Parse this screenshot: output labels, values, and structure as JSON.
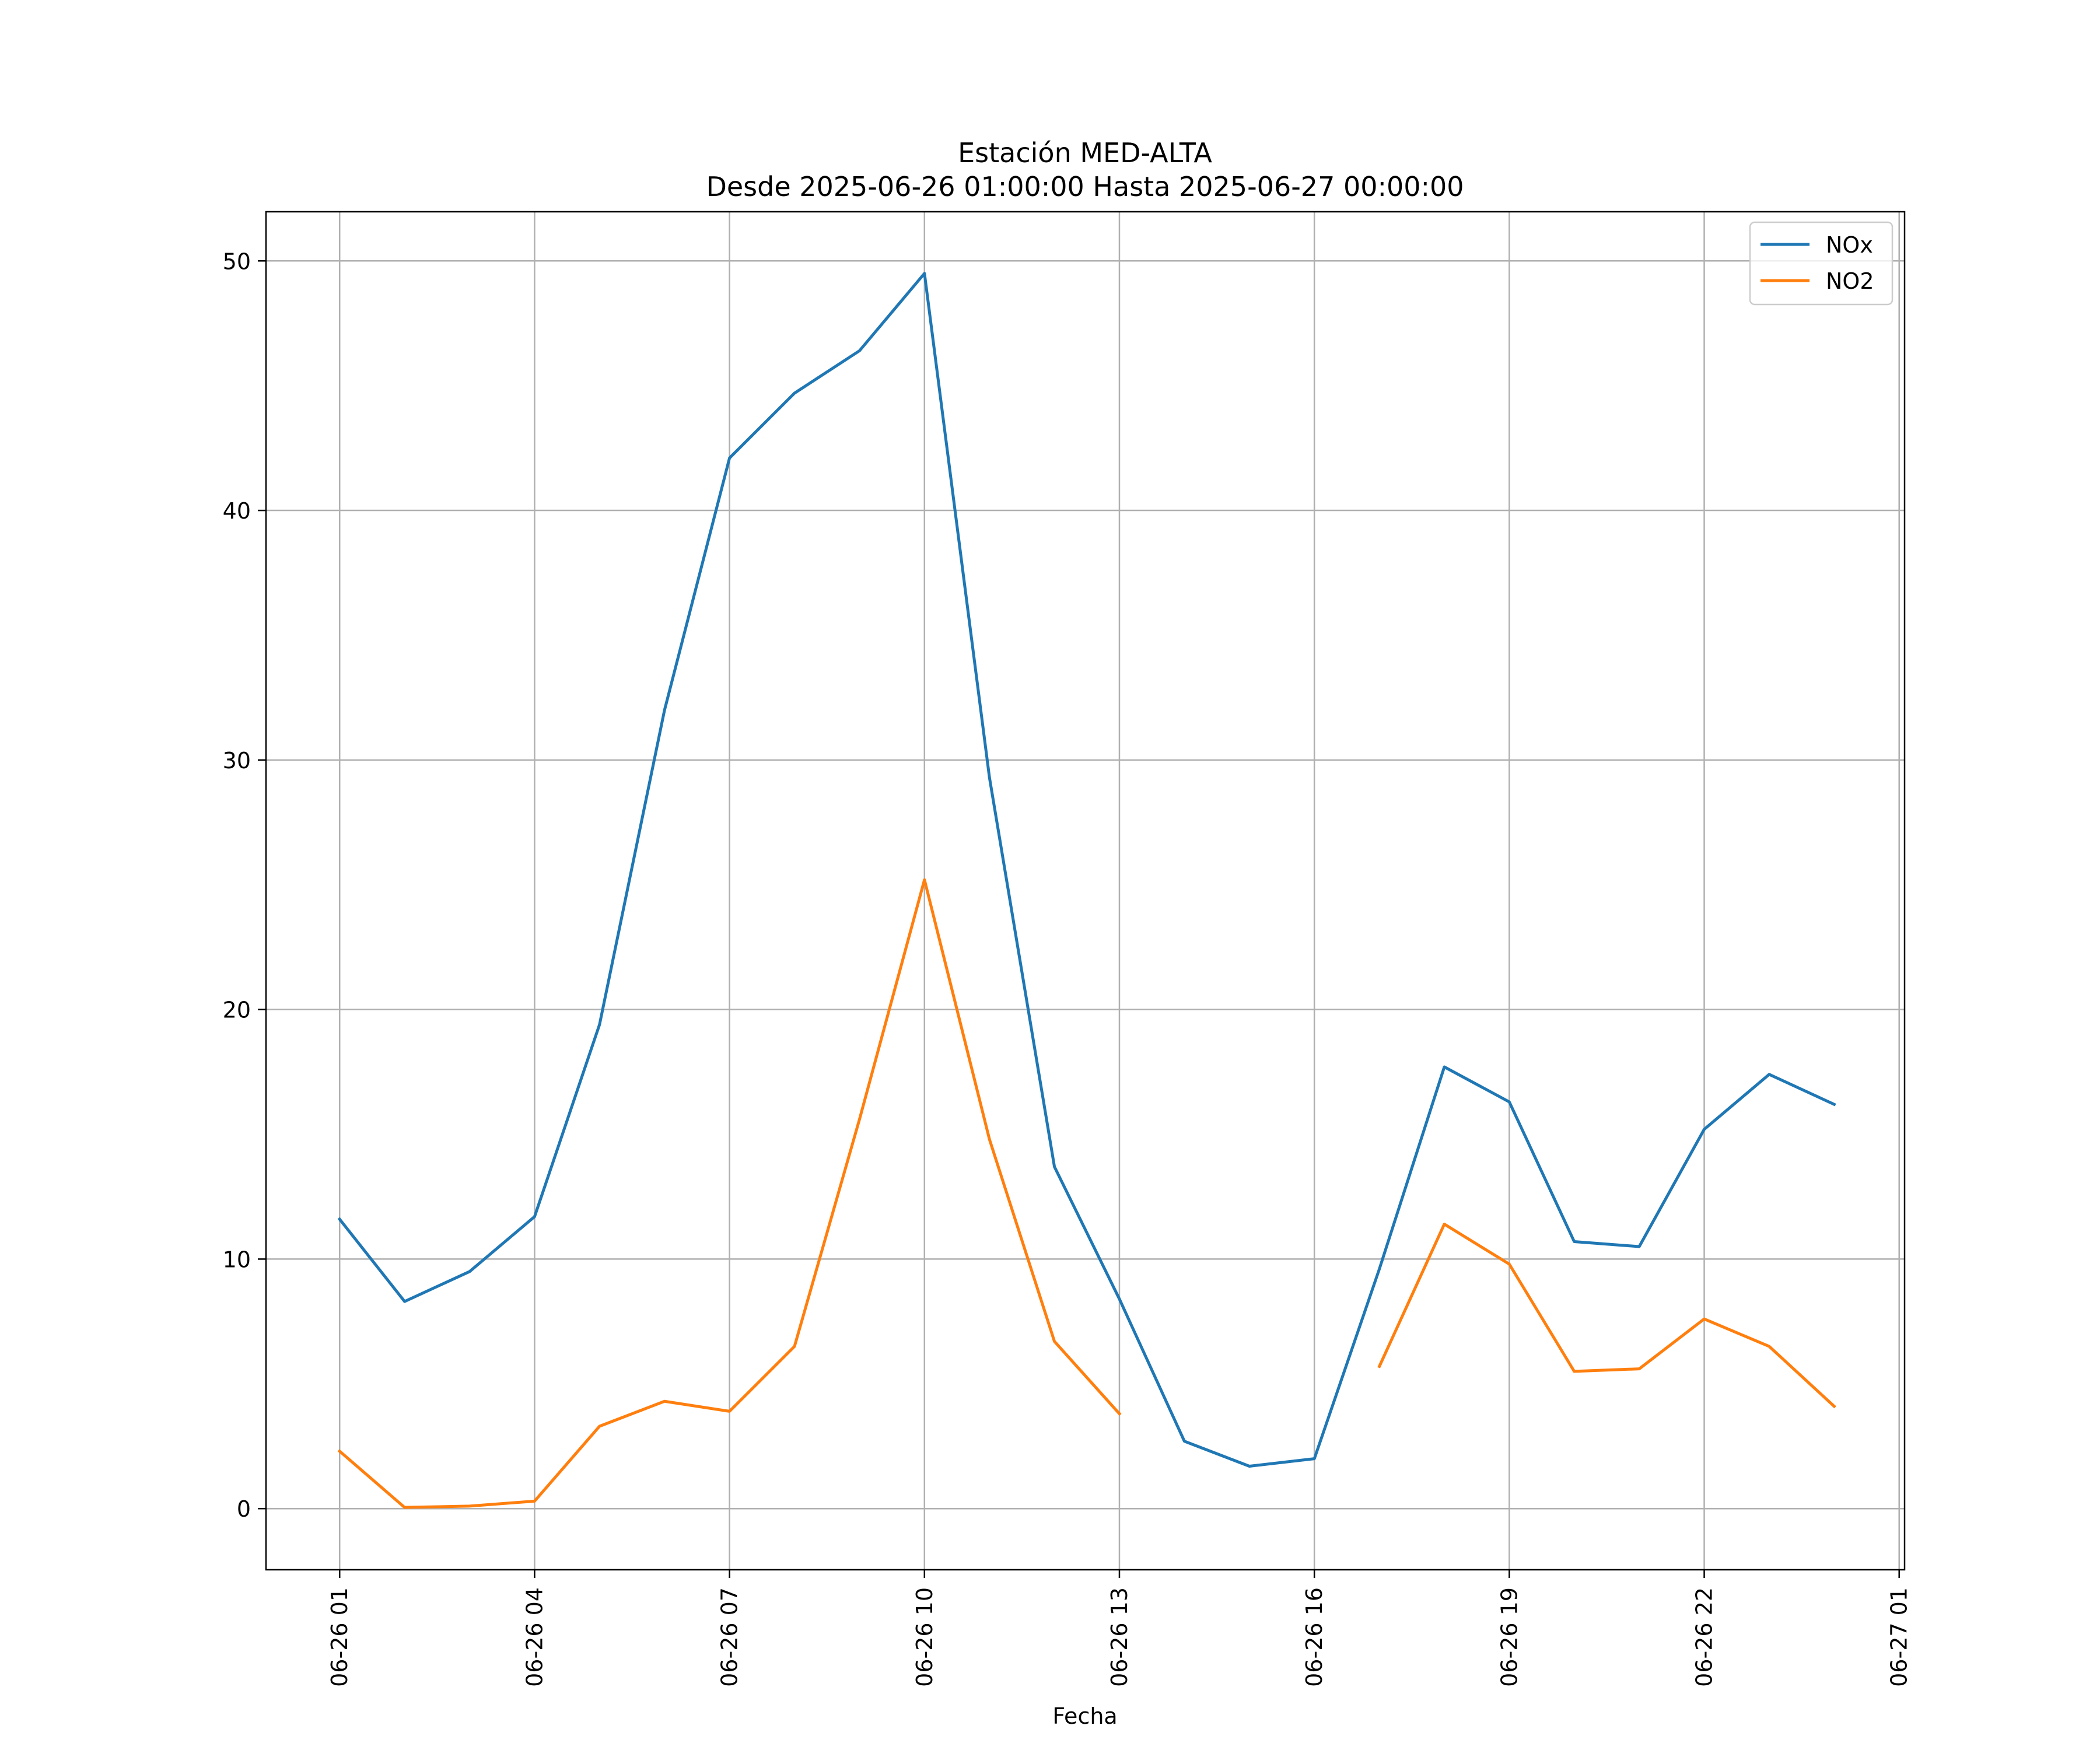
{
  "chart_data": {
    "type": "line",
    "title": "Estación MED-ALTA",
    "subtitle": "Desde 2025-06-26 01:00:00 Hasta 2025-06-27 00:00:00",
    "xlabel": "Fecha",
    "ylabel": "",
    "x": [
      "2025-06-26 01:00",
      "2025-06-26 02:00",
      "2025-06-26 03:00",
      "2025-06-26 04:00",
      "2025-06-26 05:00",
      "2025-06-26 06:00",
      "2025-06-26 07:00",
      "2025-06-26 08:00",
      "2025-06-26 09:00",
      "2025-06-26 10:00",
      "2025-06-26 11:00",
      "2025-06-26 12:00",
      "2025-06-26 13:00",
      "2025-06-26 14:00",
      "2025-06-26 15:00",
      "2025-06-26 16:00",
      "2025-06-26 17:00",
      "2025-06-26 18:00",
      "2025-06-26 19:00",
      "2025-06-26 20:00",
      "2025-06-26 21:00",
      "2025-06-26 22:00",
      "2025-06-26 23:00",
      "2025-06-27 00:00"
    ],
    "series": [
      {
        "name": "NOx",
        "color": "#1f77b4",
        "values": [
          11.6,
          8.3,
          9.5,
          11.7,
          19.4,
          32.0,
          42.1,
          44.7,
          46.4,
          49.5,
          29.3,
          13.7,
          8.4,
          2.7,
          1.7,
          2.0,
          9.6,
          17.7,
          16.3,
          10.7,
          10.5,
          15.2,
          17.4,
          16.2
        ]
      },
      {
        "name": "NO2",
        "color": "#ff7f0e",
        "values": [
          2.3,
          0.05,
          0.1,
          0.3,
          3.3,
          4.3,
          3.9,
          6.5,
          15.6,
          25.2,
          14.8,
          6.7,
          3.8,
          null,
          null,
          null,
          5.7,
          11.4,
          9.8,
          5.5,
          5.6,
          7.6,
          6.5,
          4.1
        ]
      }
    ],
    "xticks": [
      "2025-06-26 01:00",
      "2025-06-26 04:00",
      "2025-06-26 07:00",
      "2025-06-26 10:00",
      "2025-06-26 13:00",
      "2025-06-26 16:00",
      "2025-06-26 19:00",
      "2025-06-26 22:00",
      "2025-06-27 01:00"
    ],
    "xtick_labels": [
      "06-26 01",
      "06-26 04",
      "06-26 07",
      "06-26 10",
      "06-26 13",
      "06-26 16",
      "06-26 19",
      "06-26 22",
      "06-27 01"
    ],
    "xlim": [
      "2025-06-25 23:52",
      "2025-06-27 01:05"
    ],
    "yticks": [
      0,
      10,
      20,
      30,
      40,
      50
    ],
    "ylim": [
      -2.45,
      51.97
    ],
    "grid": true,
    "legend_position": "top-right"
  }
}
